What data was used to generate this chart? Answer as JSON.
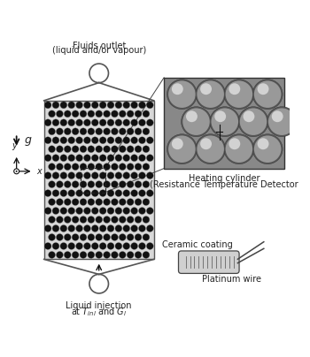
{
  "text_color": "#222222",
  "title_top1": "Fluids outlet",
  "title_top2": "(liquid and/or vapour)",
  "title_bottom1": "Liquid injection",
  "title_bottom2": "at $T_{inl}$ and $G_l$",
  "label_heating1": "Heating cylinder",
  "label_heating2": "(Resistance Temperature Detector",
  "label_ceramic": "Ceramic coating",
  "label_platinum": "Platinum wire",
  "label_g": "$g$",
  "label_y": "$y$",
  "label_x": "$x$",
  "font_size": 7.0,
  "dot_color": "#111111",
  "line_color": "#555555"
}
